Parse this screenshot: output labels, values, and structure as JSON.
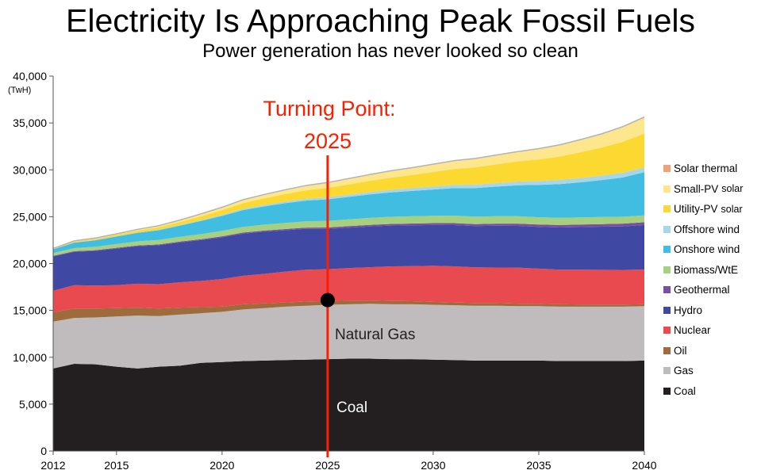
{
  "title": "Electricity Is Approaching Peak Fossil Fuels",
  "subtitle": "Power generation has never looked so clean",
  "chart_data": {
    "type": "area",
    "stacked": true,
    "title": "Electricity Is Approaching Peak Fossil Fuels",
    "subtitle": "Power generation has never looked so clean",
    "ylabel": "(TwH)",
    "xlabel": "",
    "xlim": [
      2012,
      2040
    ],
    "ylim": [
      0,
      40000
    ],
    "x": [
      2012,
      2013,
      2014,
      2015,
      2016,
      2017,
      2018,
      2019,
      2020,
      2021,
      2022,
      2023,
      2024,
      2025,
      2026,
      2027,
      2028,
      2029,
      2030,
      2031,
      2032,
      2033,
      2034,
      2035,
      2036,
      2037,
      2038,
      2039,
      2040
    ],
    "x_ticks": [
      2012,
      2015,
      2020,
      2025,
      2030,
      2035,
      2040
    ],
    "x_tick_labels": [
      "2012",
      "2015",
      "2020",
      "2025",
      "2030",
      "2035",
      "2040"
    ],
    "y_ticks": [
      0,
      5000,
      10000,
      15000,
      20000,
      25000,
      30000,
      35000,
      40000
    ],
    "y_tick_labels": [
      "0",
      "5,000",
      "10,000",
      "15,000",
      "20,000",
      "25,000",
      "30,000",
      "35,000",
      "40,000"
    ],
    "legend_position": "right",
    "series": [
      {
        "name": "Coal",
        "color": "#231f20",
        "values": [
          8800,
          9300,
          9250,
          9000,
          8800,
          9000,
          9100,
          9400,
          9500,
          9600,
          9650,
          9700,
          9750,
          9800,
          9850,
          9850,
          9800,
          9800,
          9750,
          9700,
          9650,
          9650,
          9650,
          9650,
          9600,
          9600,
          9600,
          9600,
          9650
        ]
      },
      {
        "name": "Gas",
        "color": "#c0bcbd",
        "values": [
          5000,
          4900,
          5000,
          5350,
          5650,
          5400,
          5450,
          5300,
          5350,
          5500,
          5600,
          5700,
          5750,
          5800,
          5800,
          5850,
          5850,
          5850,
          5850,
          5850,
          5850,
          5850,
          5800,
          5800,
          5800,
          5800,
          5800,
          5800,
          5800
        ]
      },
      {
        "name": "Oil",
        "color": "#9e6b3c",
        "values": [
          1000,
          1000,
          950,
          900,
          850,
          800,
          750,
          650,
          550,
          550,
          500,
          450,
          450,
          400,
          380,
          360,
          350,
          330,
          310,
          300,
          290,
          280,
          270,
          260,
          250,
          240,
          230,
          220,
          210
        ]
      },
      {
        "name": "Nuclear",
        "color": "#e94a4f",
        "values": [
          2300,
          2500,
          2450,
          2450,
          2550,
          2600,
          2700,
          2800,
          2950,
          3050,
          3150,
          3300,
          3400,
          3400,
          3500,
          3550,
          3700,
          3750,
          3850,
          3850,
          3800,
          3800,
          3850,
          3750,
          3700,
          3700,
          3700,
          3700,
          3700
        ]
      },
      {
        "name": "Hydro",
        "color": "#3f48a3",
        "values": [
          3650,
          3550,
          3700,
          3900,
          4000,
          4150,
          4250,
          4350,
          4450,
          4500,
          4500,
          4400,
          4350,
          4300,
          4300,
          4350,
          4350,
          4350,
          4350,
          4400,
          4400,
          4450,
          4450,
          4450,
          4500,
          4550,
          4600,
          4650,
          4750
        ]
      },
      {
        "name": "Geothermal",
        "color": "#7a4fa3",
        "values": [
          70,
          70,
          80,
          80,
          90,
          90,
          100,
          100,
          110,
          110,
          120,
          130,
          140,
          150,
          160,
          170,
          180,
          190,
          200,
          210,
          220,
          230,
          240,
          250,
          260,
          270,
          280,
          290,
          300
        ]
      },
      {
        "name": "Biomass/WtE",
        "color": "#a6cf7e",
        "values": [
          300,
          330,
          360,
          400,
          430,
          470,
          500,
          540,
          570,
          600,
          630,
          660,
          680,
          700,
          720,
          740,
          760,
          780,
          790,
          800,
          800,
          800,
          790,
          780,
          770,
          760,
          750,
          740,
          730
        ]
      },
      {
        "name": "Onshore wind",
        "color": "#42bde2",
        "values": [
          400,
          580,
          700,
          800,
          900,
          1050,
          1200,
          1400,
          1600,
          1800,
          1950,
          2100,
          2200,
          2300,
          2400,
          2500,
          2600,
          2700,
          2800,
          2950,
          3050,
          3150,
          3300,
          3450,
          3600,
          3750,
          3950,
          4200,
          4600
        ]
      },
      {
        "name": "Offshore wind",
        "color": "#a7d5ea",
        "values": [
          10,
          20,
          30,
          40,
          50,
          60,
          80,
          100,
          120,
          140,
          160,
          180,
          200,
          220,
          240,
          260,
          280,
          300,
          320,
          340,
          360,
          380,
          400,
          420,
          440,
          460,
          480,
          500,
          520
        ]
      },
      {
        "name": "Utility-PV solar",
        "color": "#fbd930",
        "values": [
          50,
          100,
          120,
          150,
          200,
          250,
          300,
          400,
          500,
          600,
          700,
          800,
          900,
          1000,
          1100,
          1200,
          1300,
          1400,
          1550,
          1700,
          1850,
          2000,
          2150,
          2300,
          2500,
          2750,
          3000,
          3300,
          3600
        ]
      },
      {
        "name": "Small-PV solar",
        "color": "#fde68c",
        "values": [
          30,
          60,
          80,
          100,
          130,
          160,
          200,
          250,
          300,
          350,
          400,
          450,
          500,
          550,
          600,
          650,
          700,
          750,
          800,
          850,
          900,
          950,
          1000,
          1100,
          1200,
          1300,
          1400,
          1550,
          1700
        ]
      },
      {
        "name": "Solar thermal",
        "color": "#f0a27a",
        "values": [
          5,
          5,
          5,
          5,
          5,
          10,
          10,
          10,
          10,
          15,
          15,
          15,
          20,
          20,
          25,
          25,
          30,
          30,
          35,
          35,
          40,
          45,
          50,
          55,
          60,
          65,
          70,
          75,
          80
        ]
      }
    ],
    "annotations": [
      {
        "text": "Turning Point:",
        "color": "#ff1d00"
      },
      {
        "text": "2025",
        "color": "#ff1d00"
      },
      {
        "text": "Natural Gas",
        "color": "#231f20"
      },
      {
        "text": "Coal",
        "color": "#ffffff"
      }
    ],
    "marker": {
      "x": 2025,
      "y": 16100,
      "color": "#000000"
    },
    "vertical_line": {
      "x": 2025,
      "color": "#ff1d00"
    }
  },
  "legend": [
    {
      "label": "Solar thermal",
      "suffix": "",
      "color": "#f0a27a"
    },
    {
      "label": "Small-PV",
      "suffix": "solar",
      "color": "#fde68c"
    },
    {
      "label": "Utility-PV",
      "suffix": "solar",
      "color": "#fbd930"
    },
    {
      "label": "Offshore wind",
      "suffix": "",
      "color": "#a7d5ea"
    },
    {
      "label": "Onshore wind",
      "suffix": "",
      "color": "#42bde2"
    },
    {
      "label": "Biomass/WtE",
      "suffix": "",
      "color": "#a6cf7e"
    },
    {
      "label": "Geothermal",
      "suffix": "",
      "color": "#7a4fa3"
    },
    {
      "label": "Hydro",
      "suffix": "",
      "color": "#3f48a3"
    },
    {
      "label": "Nuclear",
      "suffix": "",
      "color": "#e94a4f"
    },
    {
      "label": "Oil",
      "suffix": "",
      "color": "#9e6b3c"
    },
    {
      "label": "Gas",
      "suffix": "",
      "color": "#c0bcbd"
    },
    {
      "label": "Coal",
      "suffix": "",
      "color": "#231f20"
    }
  ]
}
